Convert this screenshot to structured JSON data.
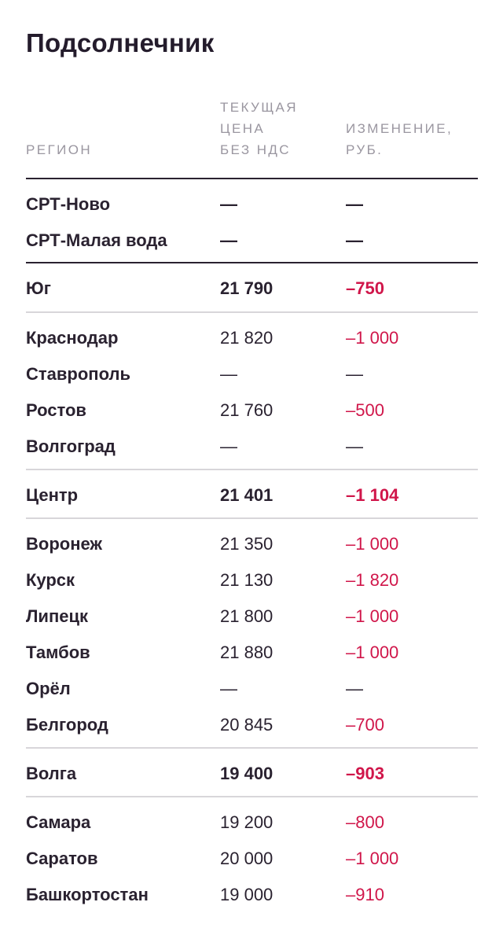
{
  "title": "Подсолнечник",
  "header": {
    "region": "РЕГИОН",
    "price": "ТЕКУЩАЯ\nЦЕНА\nБЕЗ НДС",
    "change": "ИЗМЕНЕНИЕ,\nРУБ."
  },
  "srt": [
    {
      "region": "СРТ-Ново",
      "price": "—",
      "change": "—"
    },
    {
      "region": "СРТ-Малая вода",
      "price": "—",
      "change": "—"
    }
  ],
  "groups": [
    {
      "summary": {
        "region": "Юг",
        "price": "21 790",
        "change": "–750"
      },
      "rows": [
        {
          "region": "Краснодар",
          "price": "21 820",
          "change": "–1 000"
        },
        {
          "region": "Ставрополь",
          "price": "—",
          "change": "—"
        },
        {
          "region": "Ростов",
          "price": "21 760",
          "change": "–500"
        },
        {
          "region": "Волгоград",
          "price": "—",
          "change": "—"
        }
      ]
    },
    {
      "summary": {
        "region": "Центр",
        "price": "21 401",
        "change": "–1 104"
      },
      "rows": [
        {
          "region": "Воронеж",
          "price": "21 350",
          "change": "–1 000"
        },
        {
          "region": "Курск",
          "price": "21 130",
          "change": "–1 820"
        },
        {
          "region": "Липецк",
          "price": "21 800",
          "change": "–1 000"
        },
        {
          "region": "Тамбов",
          "price": "21 880",
          "change": "–1 000"
        },
        {
          "region": "Орёл",
          "price": "—",
          "change": "—"
        },
        {
          "region": "Белгород",
          "price": "20 845",
          "change": "–700"
        }
      ]
    },
    {
      "summary": {
        "region": "Волга",
        "price": "19 400",
        "change": "–903"
      },
      "rows": [
        {
          "region": "Самара",
          "price": "19 200",
          "change": "–800"
        },
        {
          "region": "Саратов",
          "price": "20 000",
          "change": "–1 000"
        },
        {
          "region": "Башкортостан",
          "price": "19 000",
          "change": "–910"
        }
      ]
    }
  ],
  "colors": {
    "text": "#2a2230",
    "negative": "#d0164a",
    "header": "#9a96a0",
    "rule_light": "#d8d6da"
  }
}
